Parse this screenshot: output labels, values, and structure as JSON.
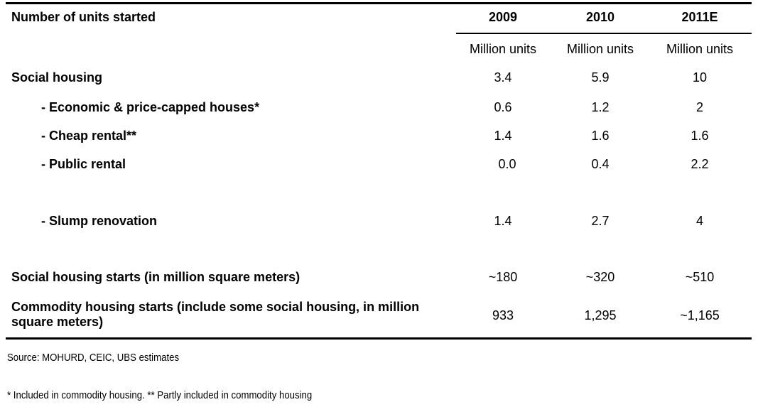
{
  "chart_data": {
    "type": "table",
    "title": "",
    "header": {
      "row_label": "Number of units started",
      "columns": [
        "2009",
        "2010",
        "2011E"
      ],
      "units": [
        "Million units",
        "Million units",
        "Million units"
      ]
    },
    "rows": [
      {
        "label": "Social housing",
        "values": [
          "3.4",
          "5.9",
          "10"
        ]
      },
      {
        "label": "- Economic & price-capped houses*",
        "values": [
          "0.6",
          "1.2",
          "2"
        ]
      },
      {
        "label": "- Cheap rental**",
        "values": [
          "1.4",
          "1.6",
          "1.6"
        ]
      },
      {
        "label": "- Public rental",
        "values": [
          "0.0",
          "0.4",
          "2.2"
        ]
      },
      {
        "label": "-  Slump renovation",
        "values": [
          "1.4",
          "2.7",
          "4"
        ]
      },
      {
        "label": "Social housing starts (in million square meters)",
        "values": [
          "~180",
          "~320",
          "~510"
        ]
      },
      {
        "label": "Commodity housing starts (include some social housing, in million square meters)",
        "values": [
          "933",
          "1,295",
          "~1,165"
        ]
      }
    ]
  },
  "footnotes": {
    "source": "Source: MOHURD, CEIC, UBS estimates",
    "note": "* Included in commodity housing. ** Partly included in commodity housing"
  }
}
